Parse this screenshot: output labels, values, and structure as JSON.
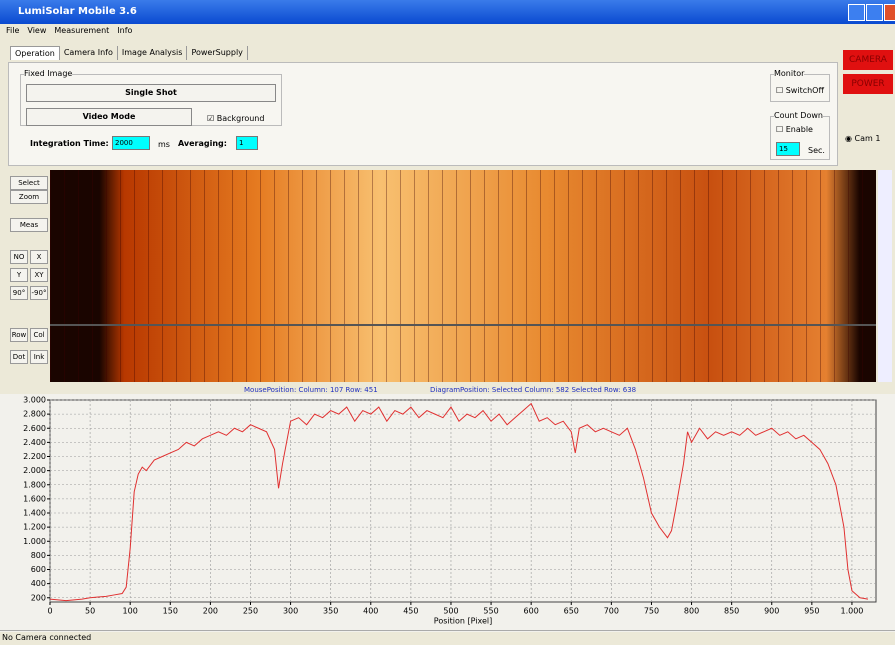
{
  "window": {
    "title": "LumiSolar Mobile 3.6"
  },
  "menu": [
    "File",
    "View",
    "Measurement",
    "Info"
  ],
  "tabs": [
    "Operation",
    "Camera Info",
    "Image Analysis",
    "PowerSupply"
  ],
  "fixed_image": {
    "label": "Fixed Image",
    "single_shot": "Single Shot",
    "video_mode": "Video Mode",
    "background": "Background",
    "integration_label": "Integration Time:",
    "integration_value": "2000",
    "integration_unit": "ms",
    "averaging_label": "Averaging:",
    "averaging_value": "1"
  },
  "monitor": {
    "label": "Monitor",
    "switch_off": "SwitchOff"
  },
  "count_down": {
    "label": "Count Down",
    "enable": "Enable",
    "value": "15",
    "unit": "Sec."
  },
  "right_panel": {
    "camera": "CAMERA",
    "power": "POWER",
    "cam": "Cam 1"
  },
  "toolbar": [
    "Select",
    "Zoom",
    "Meas",
    "NO",
    "X",
    "Y",
    "XY",
    "90°",
    "-90°",
    "Row",
    "Col",
    "Dot",
    "Ink"
  ],
  "position_info": {
    "mouse": "MousePosition: Column: 107 Row: 451",
    "diagram": "DiagramPosition: Selected Column: 582 Selected Row: 638"
  },
  "status": "No Camera connected",
  "chart_data": {
    "type": "line",
    "x_label": "Position [Pixel]",
    "color": "#e03030",
    "grid": true,
    "xlim": [
      0,
      1030
    ],
    "ylim": [
      140,
      3000
    ],
    "xticks": [
      0,
      50,
      100,
      150,
      200,
      250,
      300,
      350,
      400,
      450,
      500,
      550,
      600,
      650,
      700,
      750,
      800,
      850,
      900,
      950,
      {
        "value": 1000,
        "label": "1.000"
      }
    ],
    "yticks": [
      200,
      400,
      600,
      800,
      {
        "value": 1000,
        "label": "1.000"
      },
      {
        "value": 1200,
        "label": "1.200"
      },
      {
        "value": 1400,
        "label": "1.400"
      },
      {
        "value": 1600,
        "label": "1.600"
      },
      {
        "value": 1800,
        "label": "1.800"
      },
      {
        "value": 2000,
        "label": "2.000"
      },
      {
        "value": 2200,
        "label": "2.200"
      },
      {
        "value": 2400,
        "label": "2.400"
      },
      {
        "value": 2600,
        "label": "2.600"
      },
      {
        "value": 2800,
        "label": "2.800"
      },
      {
        "value": 3000,
        "label": "3.000"
      }
    ],
    "x": [
      0,
      10,
      20,
      30,
      40,
      50,
      60,
      70,
      80,
      90,
      95,
      100,
      105,
      110,
      115,
      120,
      130,
      140,
      150,
      160,
      170,
      180,
      190,
      200,
      210,
      220,
      230,
      240,
      250,
      260,
      270,
      280,
      285,
      290,
      300,
      310,
      320,
      330,
      340,
      350,
      360,
      370,
      380,
      390,
      400,
      410,
      420,
      430,
      440,
      450,
      460,
      470,
      480,
      490,
      500,
      510,
      520,
      530,
      540,
      550,
      560,
      570,
      580,
      590,
      600,
      610,
      620,
      630,
      640,
      650,
      655,
      660,
      670,
      680,
      690,
      700,
      710,
      720,
      730,
      740,
      750,
      760,
      770,
      775,
      780,
      790,
      795,
      800,
      810,
      820,
      830,
      840,
      850,
      860,
      870,
      880,
      890,
      900,
      910,
      920,
      930,
      940,
      950,
      960,
      970,
      980,
      990,
      995,
      1000,
      1010,
      1020
    ],
    "values": [
      180,
      170,
      160,
      170,
      180,
      200,
      210,
      220,
      240,
      260,
      350,
      900,
      1700,
      1950,
      2050,
      2000,
      2150,
      2200,
      2250,
      2300,
      2400,
      2350,
      2450,
      2500,
      2550,
      2500,
      2600,
      2550,
      2650,
      2600,
      2550,
      2300,
      1750,
      2100,
      2700,
      2750,
      2650,
      2800,
      2750,
      2850,
      2800,
      2900,
      2700,
      2850,
      2800,
      2900,
      2700,
      2850,
      2800,
      2900,
      2750,
      2850,
      2800,
      2750,
      2900,
      2700,
      2800,
      2750,
      2850,
      2700,
      2800,
      2650,
      2750,
      2850,
      2950,
      2700,
      2750,
      2650,
      2700,
      2550,
      2250,
      2600,
      2650,
      2550,
      2600,
      2550,
      2500,
      2600,
      2300,
      1900,
      1400,
      1200,
      1050,
      1150,
      1450,
      2100,
      2550,
      2400,
      2600,
      2450,
      2550,
      2500,
      2550,
      2500,
      2600,
      2500,
      2550,
      2600,
      2500,
      2550,
      2450,
      2500,
      2400,
      2300,
      2100,
      1800,
      1200,
      600,
      300,
      200,
      180
    ]
  }
}
